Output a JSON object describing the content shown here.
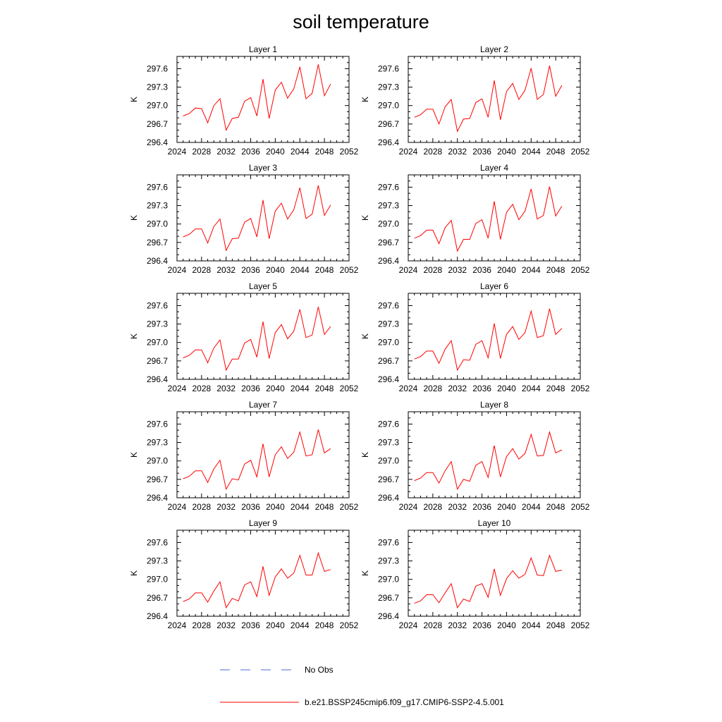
{
  "title": "soil temperature",
  "colors": {
    "model": "#ff0000",
    "obs": "#4f6bd8"
  },
  "legend": {
    "obs_label": "No Obs",
    "model_label": "b.e21.BSSP245cmip6.f09_g17.CMIP6-SSP2-4.5.001"
  },
  "chart_data": {
    "type": "line",
    "xlim": [
      2024,
      2052
    ],
    "xticks": [
      "2024",
      "2028",
      "2032",
      "2036",
      "2040",
      "2044",
      "2048",
      "2052"
    ],
    "ylabel": "K",
    "ylim": [
      296.4,
      297.8
    ],
    "yticks": [
      "296.4",
      "296.7",
      "297.0",
      "297.3",
      "297.6"
    ],
    "x": [
      2025,
      2026,
      2027,
      2028,
      2029,
      2030,
      2031,
      2032,
      2033,
      2034,
      2035,
      2036,
      2037,
      2038,
      2039,
      2040,
      2041,
      2042,
      2043,
      2044,
      2045,
      2046,
      2047,
      2048,
      2049
    ],
    "panels": [
      {
        "title": "Layer 1",
        "series": [
          {
            "name": "b.e21.BSSP245cmip6.f09_g17.CMIP6-SSP2-4.5.001",
            "values": [
              296.83,
              296.87,
              296.96,
              296.95,
              296.72,
              297.0,
              297.11,
              296.6,
              296.79,
              296.81,
              297.07,
              297.13,
              296.83,
              297.43,
              296.79,
              297.25,
              297.38,
              297.12,
              297.27,
              297.63,
              297.11,
              297.2,
              297.67,
              297.16,
              297.35
            ]
          }
        ]
      },
      {
        "title": "Layer 2",
        "series": [
          {
            "name": "b.e21.BSSP245cmip6.f09_g17.CMIP6-SSP2-4.5.001",
            "values": [
              296.81,
              296.85,
              296.94,
              296.94,
              296.7,
              296.98,
              297.1,
              296.58,
              296.78,
              296.79,
              297.05,
              297.11,
              296.81,
              297.41,
              296.77,
              297.23,
              297.36,
              297.1,
              297.25,
              297.61,
              297.1,
              297.18,
              297.65,
              297.15,
              297.33
            ]
          }
        ]
      },
      {
        "title": "Layer 3",
        "series": [
          {
            "name": "b.e21.BSSP245cmip6.f09_g17.CMIP6-SSP2-4.5.001",
            "values": [
              296.79,
              296.83,
              296.92,
              296.92,
              296.69,
              296.96,
              297.08,
              296.57,
              296.76,
              296.77,
              297.03,
              297.09,
              296.79,
              297.39,
              296.76,
              297.21,
              297.34,
              297.08,
              297.23,
              297.59,
              297.09,
              297.16,
              297.63,
              297.14,
              297.31
            ]
          }
        ]
      },
      {
        "title": "Layer 4",
        "series": [
          {
            "name": "b.e21.BSSP245cmip6.f09_g17.CMIP6-SSP2-4.5.001",
            "values": [
              296.77,
              296.81,
              296.9,
              296.9,
              296.68,
              296.94,
              297.06,
              296.56,
              296.75,
              296.75,
              297.01,
              297.07,
              296.77,
              297.37,
              296.75,
              297.19,
              297.32,
              297.07,
              297.21,
              297.57,
              297.08,
              297.14,
              297.61,
              297.13,
              297.29
            ]
          }
        ]
      },
      {
        "title": "Layer 5",
        "series": [
          {
            "name": "b.e21.BSSP245cmip6.f09_g17.CMIP6-SSP2-4.5.001",
            "values": [
              296.75,
              296.79,
              296.88,
              296.88,
              296.67,
              296.91,
              297.04,
              296.55,
              296.73,
              296.73,
              296.99,
              297.05,
              296.76,
              297.34,
              296.74,
              297.16,
              297.29,
              297.06,
              297.18,
              297.54,
              297.08,
              297.12,
              297.58,
              297.13,
              297.26
            ]
          }
        ]
      },
      {
        "title": "Layer 6",
        "series": [
          {
            "name": "b.e21.BSSP245cmip6.f09_g17.CMIP6-SSP2-4.5.001",
            "values": [
              296.73,
              296.77,
              296.86,
              296.86,
              296.66,
              296.89,
              297.03,
              296.55,
              296.72,
              296.71,
              296.97,
              297.03,
              296.75,
              297.31,
              296.74,
              297.13,
              297.26,
              297.05,
              297.16,
              297.51,
              297.08,
              297.11,
              297.55,
              297.13,
              297.23
            ]
          }
        ]
      },
      {
        "title": "Layer 7",
        "series": [
          {
            "name": "b.e21.BSSP245cmip6.f09_g17.CMIP6-SSP2-4.5.001",
            "values": [
              296.71,
              296.75,
              296.84,
              296.84,
              296.65,
              296.87,
              297.01,
              296.54,
              296.71,
              296.69,
              296.95,
              297.01,
              296.74,
              297.28,
              296.74,
              297.1,
              297.23,
              297.04,
              297.14,
              297.47,
              297.08,
              297.1,
              297.51,
              297.13,
              297.2
            ]
          }
        ]
      },
      {
        "title": "Layer 8",
        "series": [
          {
            "name": "b.e21.BSSP245cmip6.f09_g17.CMIP6-SSP2-4.5.001",
            "values": [
              296.68,
              296.72,
              296.81,
              296.81,
              296.64,
              296.84,
              296.99,
              296.54,
              296.7,
              296.67,
              296.93,
              296.99,
              296.73,
              297.25,
              296.74,
              297.07,
              297.2,
              297.03,
              297.12,
              297.43,
              297.08,
              297.09,
              297.47,
              297.13,
              297.18
            ]
          }
        ]
      },
      {
        "title": "Layer 9",
        "series": [
          {
            "name": "b.e21.BSSP245cmip6.f09_g17.CMIP6-SSP2-4.5.001",
            "values": [
              296.64,
              296.68,
              296.78,
              296.78,
              296.63,
              296.81,
              296.96,
              296.54,
              296.69,
              296.65,
              296.91,
              296.96,
              296.72,
              297.21,
              296.74,
              297.04,
              297.17,
              297.02,
              297.1,
              297.39,
              297.07,
              297.07,
              297.43,
              297.13,
              297.16
            ]
          }
        ]
      },
      {
        "title": "Layer 10",
        "series": [
          {
            "name": "b.e21.BSSP245cmip6.f09_g17.CMIP6-SSP2-4.5.001",
            "values": [
              296.61,
              296.65,
              296.75,
              296.75,
              296.62,
              296.78,
              296.93,
              296.54,
              296.68,
              296.64,
              296.89,
              296.93,
              296.71,
              297.17,
              296.74,
              297.01,
              297.14,
              297.02,
              297.08,
              297.35,
              297.07,
              297.06,
              297.39,
              297.13,
              297.15
            ]
          }
        ]
      }
    ]
  }
}
